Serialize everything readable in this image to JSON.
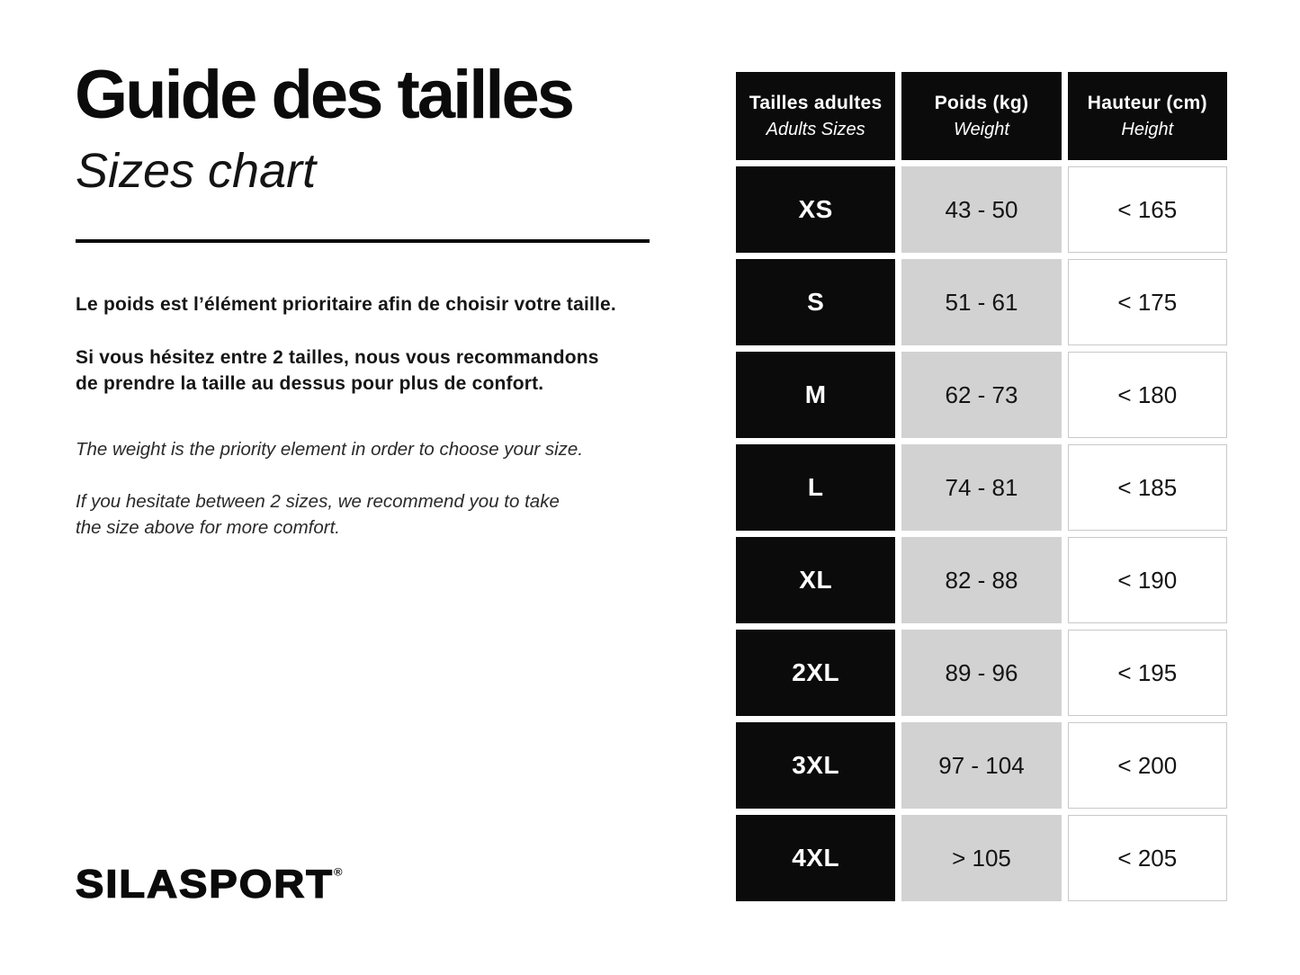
{
  "left_panel": {
    "title_fr": "Guide des tailles",
    "title_en": "Sizes chart",
    "intro_fr_1": "Le poids est l’élément prioritaire afin de choisir votre taille.",
    "intro_fr_2": "Si vous hésitez entre 2 tailles, nous vous recommandons\nde prendre la taille au dessus pour plus de confort.",
    "intro_en_1": "The weight is the priority element in order to choose your size.",
    "intro_en_2": "If you hesitate between 2 sizes, we recommend you to take\nthe size above for more comfort.",
    "logo_text": "SILASPORT",
    "logo_registered": "®"
  },
  "table": {
    "headers": [
      {
        "fr": "Tailles adultes",
        "en": "Adults Sizes"
      },
      {
        "fr": "Poids (kg)",
        "en": "Weight"
      },
      {
        "fr": "Hauteur (cm)",
        "en": "Height"
      }
    ],
    "rows": [
      {
        "size": "XS",
        "weight": "43 - 50",
        "height": "< 165"
      },
      {
        "size": "S",
        "weight": "51 - 61",
        "height": "< 175"
      },
      {
        "size": "M",
        "weight": "62 - 73",
        "height": "< 180"
      },
      {
        "size": "L",
        "weight": "74 - 81",
        "height": "< 185"
      },
      {
        "size": "XL",
        "weight": "82 - 88",
        "height": "< 190"
      },
      {
        "size": "2XL",
        "weight": "89 - 96",
        "height": "< 195"
      },
      {
        "size": "3XL",
        "weight": "97 - 104",
        "height": "< 200"
      },
      {
        "size": "4XL",
        "weight": "> 105",
        "height": "< 205"
      }
    ]
  },
  "colors": {
    "cell_black": "#0b0b0b",
    "cell_gray": "#d2d2d2",
    "white_cell_border": "#c9c9c9",
    "text": "#111111",
    "background": "#ffffff"
  }
}
